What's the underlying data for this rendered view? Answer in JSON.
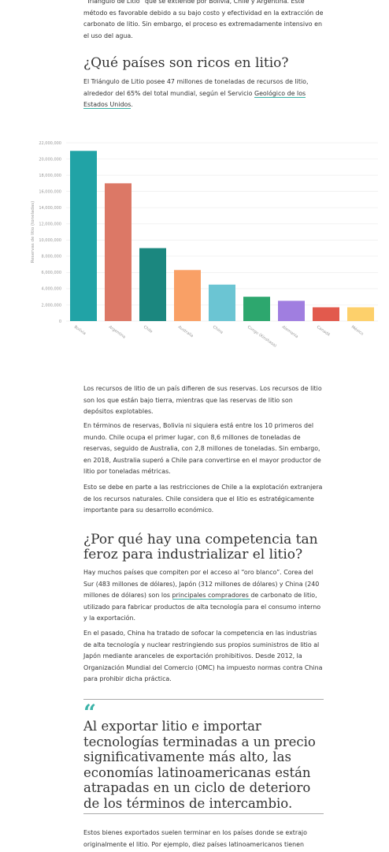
{
  "intro": "“Triángulo de Litio” que se extiende por Bolivia, Chile y Argentina. Este método es favorable debido a su bajo costo y efectividad en la extracción de carbonato de litio. Sin embargo, el proceso es extremadamente intensivo en el uso del agua.",
  "heading1": "¿Qué países son ricos en litio?",
  "para1": {
    "before": "El Triángulo de Litio posee 47 millones de toneladas de recursos de litio, alrededor del 65% del total mundial, según el Servicio ",
    "link": "Geológico de los Estados Unidos",
    "after": "."
  },
  "chart_data": {
    "type": "bar",
    "y_label": "Reservas de litio (toneladas)",
    "categories": [
      "Bolivia",
      "Argentina",
      "Chile",
      "Australia",
      "China",
      "Congo (Kinshasa)",
      "Alemania",
      "Canadá",
      "México"
    ],
    "values": [
      21000000,
      17000000,
      9000000,
      6300000,
      4500000,
      3000000,
      2500000,
      1700000,
      1700000
    ],
    "colors": [
      "#21a3a6",
      "#dc7866",
      "#1b877f",
      "#f9a066",
      "#6bc5d3",
      "#2da76e",
      "#a07ee0",
      "#e25a4d",
      "#fdd06b"
    ],
    "ylim": [
      0,
      22000000
    ],
    "yticks": [
      0,
      {
        "value": 2000000,
        "label": "2,000,000"
      },
      {
        "value": 4000000,
        "label": "4,000,000"
      },
      {
        "value": 6000000,
        "label": "6,000,000"
      },
      {
        "value": 8000000,
        "label": "8,000,000"
      },
      {
        "value": 10000000,
        "label": "10,000,000"
      },
      {
        "value": 12000000,
        "label": "12,000,000"
      },
      {
        "value": 14000000,
        "label": "14,000,000"
      },
      {
        "value": 16000000,
        "label": "16,000,000"
      },
      {
        "value": 18000000,
        "label": "18,000,000"
      },
      {
        "value": 20000000,
        "label": "20,000,000"
      },
      {
        "value": 22000000,
        "label": "22,000,000"
      }
    ],
    "grid": true
  },
  "para2": "Los recursos de litio de un país difieren de sus reservas. Los recursos de litio son los que están bajo tierra, mientras que las reservas de litio son depósitos explotables.",
  "para3": "En términos de reservas, Bolivia ni siquiera está entre los 10 primeros del mundo. Chile ocupa el primer lugar, con 8,6 millones de toneladas de reservas, seguido de Australia, con 2,8 millones de toneladas. Sin embargo, en 2018, Australia superó a Chile para convertirse en el mayor productor de litio por toneladas métricas.",
  "para4": "Esto se debe en parte a las restricciones de Chile a la explotación extranjera de los recursos naturales. Chile considera que el litio es estratégicamente importante para su desarrollo económico.",
  "heading2": "¿Por qué hay una competencia tan feroz para industrializar el litio?",
  "para5": {
    "before": "Hay muchos países que compiten por el acceso al “oro blanco”. Corea del Sur (483 millones de dólares), Japón (312 millones de dólares) y China (240 millones de dólares) son los ",
    "link": "principales compradores ",
    "after": "de carbonato de litio, utilizado para fabricar productos de alta tecnología para el consumo interno y la exportación."
  },
  "para6": "En el pasado, China ha tratado de sofocar la competencia en las industrias de alta tecnología y nuclear restringiendo sus propios suministros de litio al Japón mediante aranceles de exportación prohibitivos. Desde 2012, la Organización Mundial del Comercio (OMC) ha impuesto normas contra China para prohibir dicha práctica.",
  "quote": {
    "mark": "“",
    "text": "Al exportar litio e importar tecnologías terminadas a un precio significativamente más alto, las economías latinoamericanas están atrapadas en un ciclo de deterioro de los términos de intercambio."
  },
  "para7": "Estos bienes exportados suelen terminar en los países donde se extrajo originalmente el litio. Por ejemplo, diez países latinoamericanos tienen"
}
